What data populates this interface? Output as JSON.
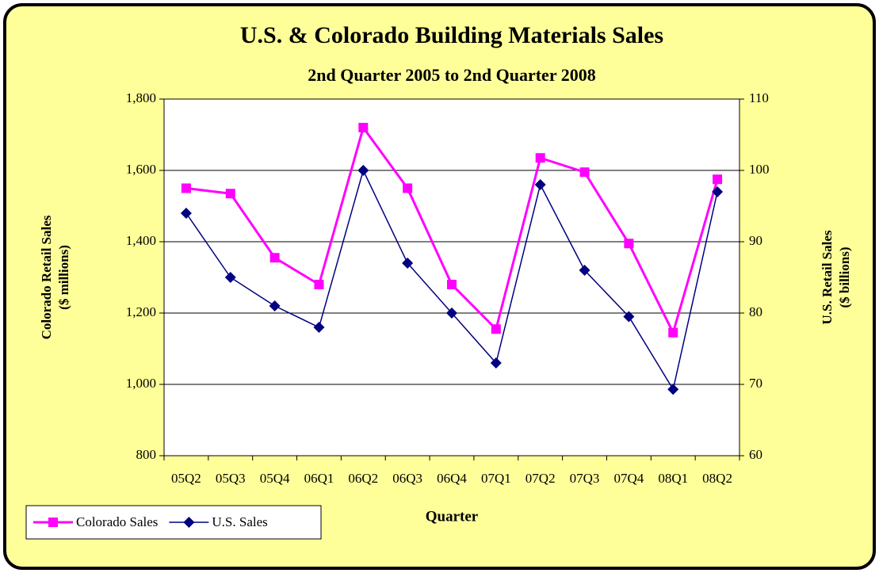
{
  "chart_data": {
    "type": "line",
    "title": "U.S. & Colorado Building Materials Sales",
    "subtitle": "2nd Quarter 2005 to 2nd Quarter 2008",
    "xlabel": "Quarter",
    "ylabel": [
      "Colorado Retail Sales",
      "($ millions)"
    ],
    "y2label": [
      "U.S. Retail Sales",
      "($ billions)"
    ],
    "categories": [
      "05Q2",
      "05Q3",
      "05Q4",
      "06Q1",
      "06Q2",
      "06Q3",
      "06Q4",
      "07Q1",
      "07Q2",
      "07Q3",
      "07Q4",
      "08Q1",
      "08Q2"
    ],
    "series": [
      {
        "name": "Colorado Sales",
        "color": "#ff00ff",
        "marker": "square",
        "values": [
          1550,
          1535,
          1355,
          1280,
          1720,
          1550,
          1280,
          1155,
          1635,
          1595,
          1395,
          1145,
          1575
        ]
      },
      {
        "name": "U.S. Sales",
        "color": "#000080",
        "marker": "diamond",
        "axis": "y2",
        "values": [
          94,
          85,
          81,
          78,
          100,
          87,
          80,
          73,
          98,
          86,
          79.5,
          69.3,
          97
        ]
      }
    ],
    "ylim": [
      800,
      1800
    ],
    "yticks": [
      {
        "value": 800,
        "label": "800"
      },
      {
        "value": 1000,
        "label": "1,000"
      },
      {
        "value": 1200,
        "label": "1,200"
      },
      {
        "value": 1400,
        "label": "1,400"
      },
      {
        "value": 1600,
        "label": "1,600"
      },
      {
        "value": 1800,
        "label": "1,800"
      }
    ],
    "y2lim": [
      60,
      110
    ],
    "y2ticks": [
      60,
      70,
      80,
      90,
      100,
      110
    ],
    "grid": true,
    "legend": "bottom-left"
  }
}
